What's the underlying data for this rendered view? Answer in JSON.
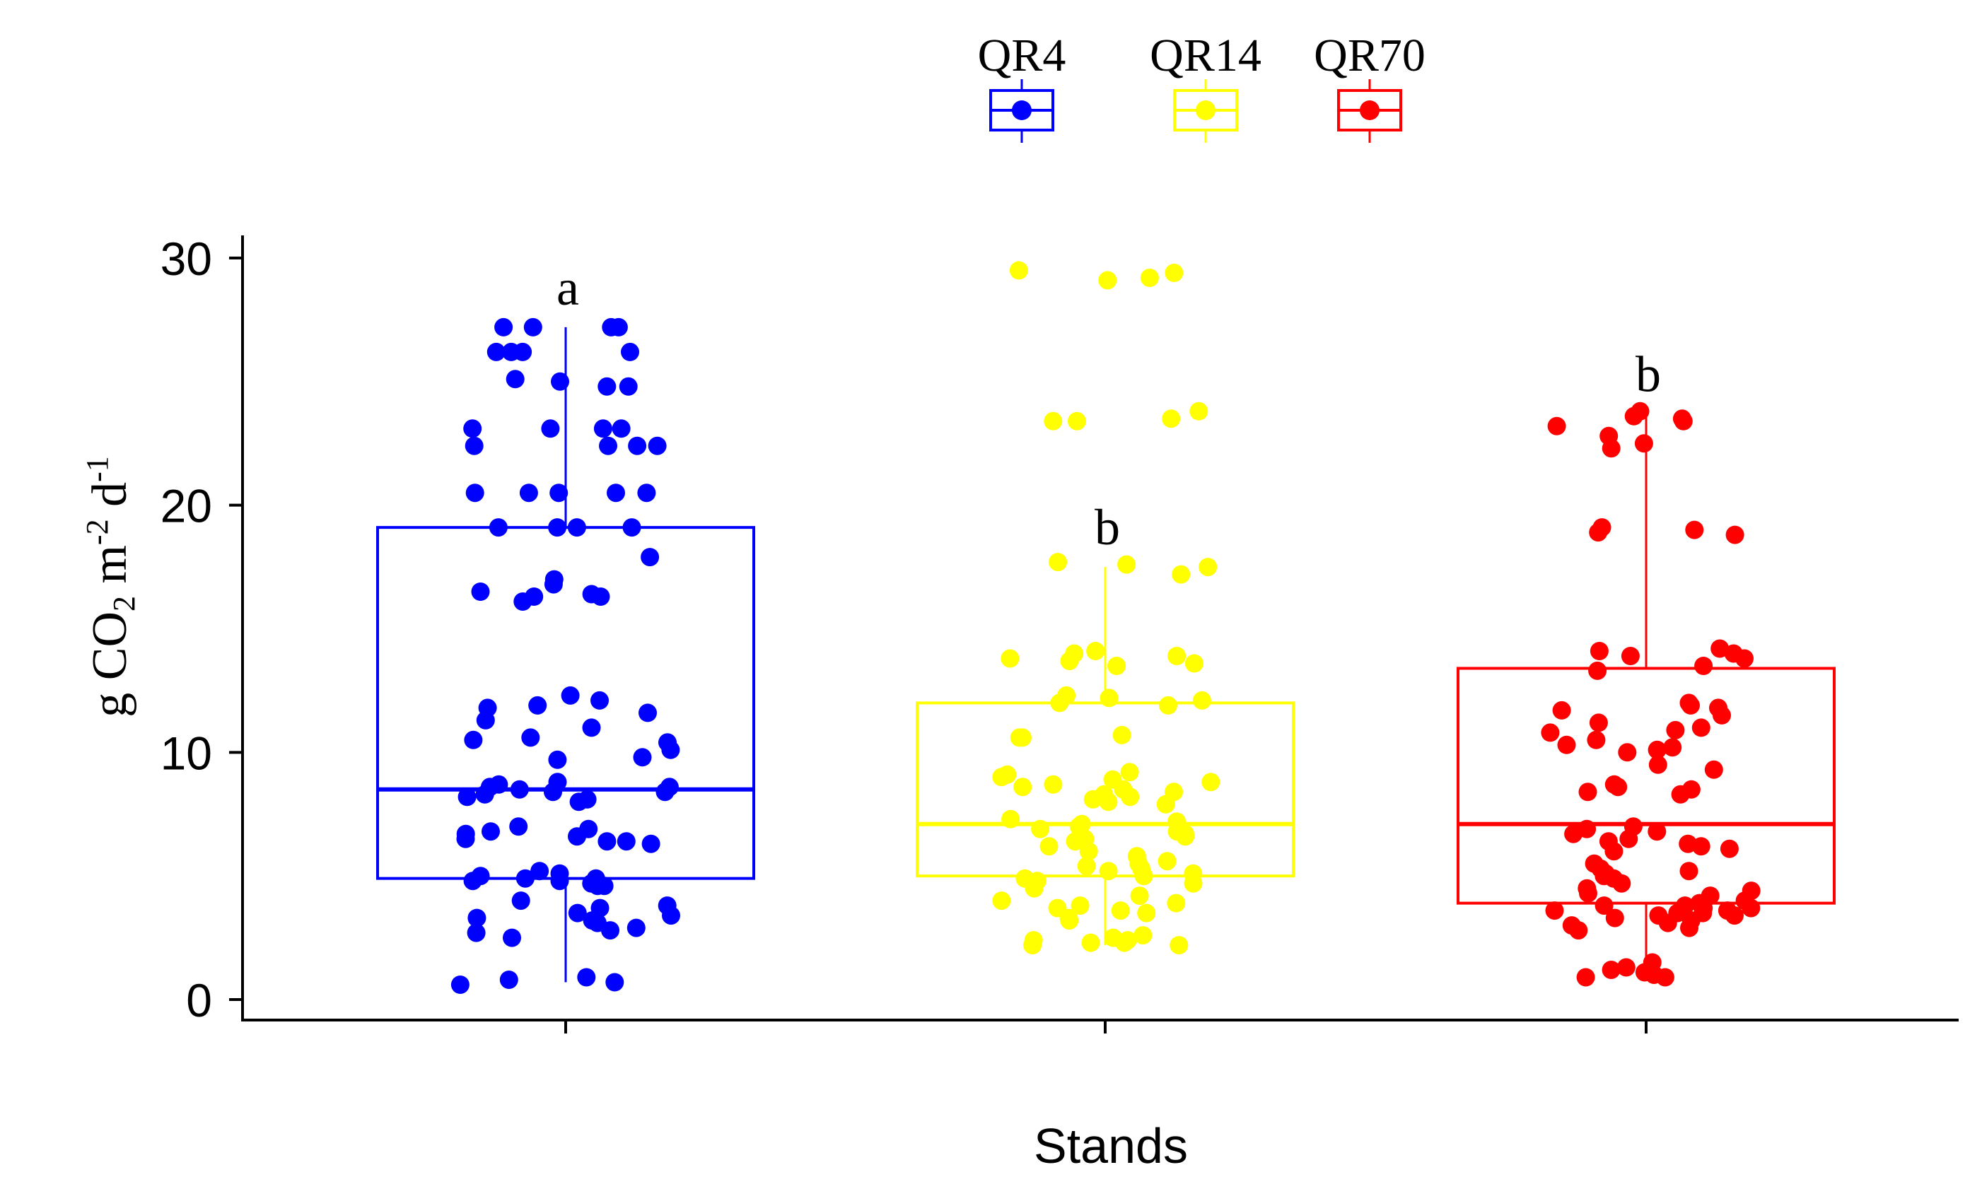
{
  "chart_data": {
    "type": "box+jitter",
    "xlabel": "Stands",
    "ylabel_base": "g CO",
    "ylabel_sub": "2",
    "ylabel_unit1": " m",
    "ylabel_sup1": "-2",
    "ylabel_unit2": " d",
    "ylabel_sup2": "-1",
    "ylim": [
      0,
      31
    ],
    "yticks": [
      0,
      10,
      20,
      30
    ],
    "legend_position": "top",
    "series": [
      {
        "name": "QR4",
        "color": "#0000ff",
        "letter": "a",
        "box": {
          "q1": 4.9,
          "median": 8.5,
          "q3": 19.1,
          "whisker_low": 0.7,
          "whisker_high": 27.2
        },
        "points": [
          27.2,
          27.2,
          27.2,
          27.2,
          26.2,
          26.2,
          26.2,
          26.2,
          25.1,
          25.0,
          24.8,
          24.8,
          23.1,
          23.1,
          23.1,
          23.1,
          22.4,
          22.4,
          22.4,
          22.4,
          20.5,
          20.5,
          20.5,
          20.5,
          20.5,
          19.1,
          19.1,
          19.1,
          19.1,
          17.9,
          17.0,
          16.8,
          16.5,
          16.3,
          16.3,
          16.1,
          16.4,
          12.3,
          12.1,
          11.9,
          11.8,
          11.6,
          11.3,
          11.0,
          10.6,
          10.5,
          10.4,
          10.1,
          9.8,
          9.7,
          8.8,
          8.7,
          8.6,
          8.6,
          8.5,
          8.4,
          8.4,
          8.3,
          8.2,
          8.1,
          8.0,
          7.0,
          6.9,
          6.8,
          6.7,
          6.6,
          6.5,
          6.4,
          6.4,
          6.3,
          5.2,
          5.1,
          5.0,
          4.9,
          4.9,
          4.8,
          4.8,
          4.7,
          4.6,
          4.6,
          4.0,
          3.8,
          3.7,
          3.5,
          3.4,
          3.3,
          3.2,
          3.1,
          2.9,
          2.8,
          2.7,
          2.5,
          0.9,
          0.8,
          0.7,
          0.6
        ]
      },
      {
        "name": "QR14",
        "color": "#ffff00",
        "letter": "b",
        "box": {
          "q1": 5.0,
          "median": 7.1,
          "q3": 12.0,
          "whisker_low": 2.2,
          "whisker_high": 17.5
        },
        "points": [
          29.5,
          29.4,
          29.2,
          29.1,
          23.8,
          23.5,
          23.4,
          23.4,
          17.7,
          17.6,
          17.5,
          17.2,
          14.1,
          14.0,
          13.9,
          13.8,
          13.7,
          13.6,
          13.5,
          12.3,
          12.2,
          12.1,
          12.0,
          11.9,
          10.7,
          10.6,
          10.6,
          9.2,
          9.1,
          9.0,
          8.9,
          8.8,
          8.7,
          8.6,
          8.5,
          8.4,
          8.3,
          8.2,
          8.1,
          8.0,
          7.9,
          7.3,
          7.2,
          7.1,
          7.0,
          6.9,
          6.8,
          6.7,
          6.6,
          6.5,
          6.4,
          6.2,
          6.0,
          5.8,
          5.6,
          5.5,
          5.4,
          5.3,
          5.2,
          5.1,
          5.0,
          4.9,
          4.8,
          4.7,
          4.5,
          4.2,
          4.0,
          3.9,
          3.8,
          3.7,
          3.6,
          3.5,
          3.3,
          3.2,
          2.6,
          2.5,
          2.4,
          2.4,
          2.3,
          2.3,
          2.2,
          2.2
        ]
      },
      {
        "name": "QR70",
        "color": "#ff0000",
        "letter": "b",
        "box": {
          "q1": 3.9,
          "median": 7.1,
          "q3": 13.4,
          "whisker_low": 1.0,
          "whisker_high": 23.7
        },
        "points": [
          23.8,
          23.6,
          23.5,
          23.4,
          23.2,
          22.8,
          22.5,
          22.3,
          19.1,
          19.0,
          18.9,
          18.8,
          14.2,
          14.1,
          14.0,
          13.9,
          13.8,
          13.5,
          13.3,
          12.0,
          11.9,
          11.8,
          11.7,
          11.5,
          11.2,
          11.0,
          10.9,
          10.8,
          10.5,
          10.3,
          10.2,
          10.1,
          10.0,
          9.5,
          9.3,
          8.7,
          8.6,
          8.5,
          8.4,
          8.3,
          7.0,
          6.9,
          6.8,
          6.7,
          6.5,
          6.4,
          6.3,
          6.2,
          6.1,
          6.0,
          5.5,
          5.3,
          5.2,
          5.1,
          5.0,
          4.9,
          4.7,
          4.5,
          4.4,
          4.3,
          4.2,
          4.0,
          3.9,
          3.8,
          3.8,
          3.7,
          3.7,
          3.6,
          3.6,
          3.5,
          3.5,
          3.4,
          3.4,
          3.3,
          3.2,
          3.1,
          3.0,
          2.9,
          2.8,
          1.5,
          1.3,
          1.2,
          1.1,
          1.0,
          0.9,
          0.9
        ]
      }
    ]
  }
}
